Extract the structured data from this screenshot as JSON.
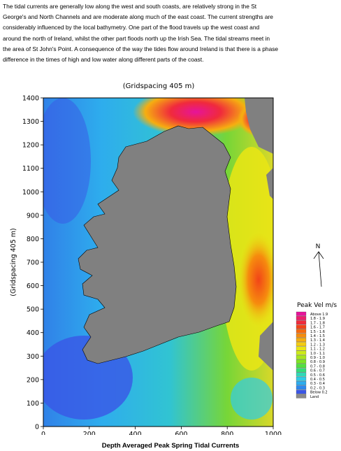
{
  "paragraph": {
    "lines": [
      "The tidal currents are generally low along the west and south coasts, are relatively strong in the St",
      "George's and North Channels and are moderate along much of the east coast.  The current strengths are",
      "considerably influenced by the local bathymetry.  One part of the flood travels up the west coast and",
      "around the north of Ireland, whilst the other part floods north up the Irish Sea.  The tidal streams meet in",
      "the area of St John's Point.  A consequence of the way the tides flow around Ireland is that there is a phase",
      "difference in the times of high and low water along different parts of the coast."
    ]
  },
  "figure": {
    "top_title": "(Gridspacing 405 m)",
    "y_title": "(Gridspacing 405 m)",
    "x_ticks": [
      "0",
      "200",
      "400",
      "600",
      "800",
      "1000"
    ],
    "y_ticks": [
      "0",
      "100",
      "200",
      "300",
      "400",
      "500",
      "600",
      "700",
      "800",
      "900",
      "1000",
      "1100",
      "1200",
      "1300",
      "1400"
    ],
    "north_label": "N",
    "legend": {
      "title": "Peak Vel m/s",
      "items": [
        {
          "label": "Above    1.9",
          "color": "#e6149a"
        },
        {
          "label": "1.8  -  1.9",
          "color": "#ee1e6e"
        },
        {
          "label": "1.7  -  1.8",
          "color": "#f02a3c"
        },
        {
          "label": "1.6  -  1.7",
          "color": "#f24418"
        },
        {
          "label": "1.5  -  1.6",
          "color": "#f46a10"
        },
        {
          "label": "1.4  -  1.5",
          "color": "#f68c0e"
        },
        {
          "label": "1.3  -  1.4",
          "color": "#f6ae10"
        },
        {
          "label": "1.2  -  1.3",
          "color": "#f4cc12"
        },
        {
          "label": "1.1  -  1.2",
          "color": "#eae614"
        },
        {
          "label": "1.0  -  1.1",
          "color": "#cdea18"
        },
        {
          "label": "0.9  -  1.0",
          "color": "#a8e61c"
        },
        {
          "label": "0.8  -  0.9",
          "color": "#7ee424"
        },
        {
          "label": "0.7  -  0.8",
          "color": "#52e040"
        },
        {
          "label": "0.6  -  0.7",
          "color": "#34dc7a"
        },
        {
          "label": "0.5  -  0.6",
          "color": "#30d8b6"
        },
        {
          "label": "0.4  -  0.5",
          "color": "#30cce6"
        },
        {
          "label": "0.3  -  0.4",
          "color": "#2cacee"
        },
        {
          "label": "0.2  -  0.3",
          "color": "#2c88ee"
        },
        {
          "label": "Below    0.2",
          "color": "#3a56e6"
        },
        {
          "label": "Land",
          "color": "#8a8a8a"
        }
      ]
    }
  },
  "caption": "Depth Averaged Peak Spring Tidal Currents",
  "colors": {
    "land": "#808080",
    "sea_low": "#3a56e6",
    "sea_mid": "#2cacee",
    "sea_high": "#eae614",
    "sea_peak": "#f02a3c"
  }
}
